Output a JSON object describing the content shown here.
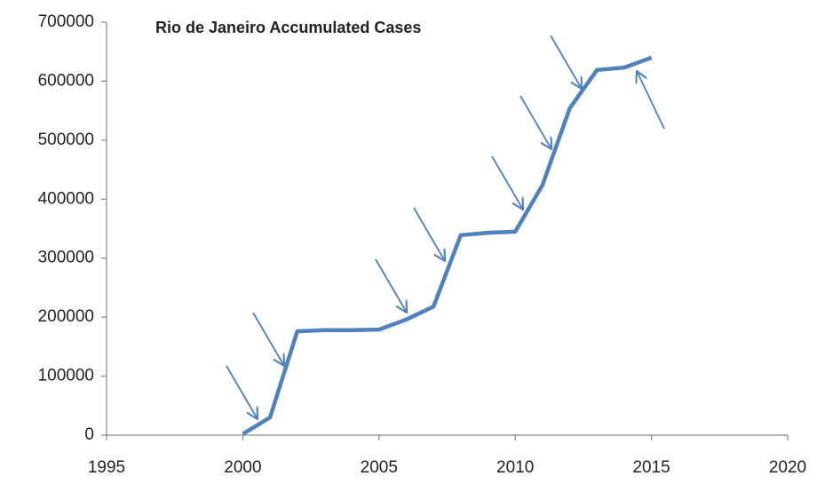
{
  "chart_data": {
    "type": "line",
    "title": "Rio de Janeiro Accumulated Cases",
    "series": [
      {
        "color": "#4f81bd",
        "x": [
          2000,
          2001,
          2002,
          2003,
          2004,
          2005,
          2006,
          2007,
          2008,
          2009,
          2010,
          2011,
          2012,
          2013,
          2014,
          2015
        ],
        "values": [
          2000,
          30000,
          176000,
          178000,
          178000,
          179000,
          196000,
          218000,
          339000,
          343000,
          345000,
          424000,
          554000,
          619000,
          623000,
          640000
        ]
      }
    ],
    "xlim": [
      1995,
      2020
    ],
    "xticks": [
      1995,
      2000,
      2005,
      2010,
      2015,
      2020
    ],
    "ylim": [
      0,
      700000
    ],
    "yticks": [
      0,
      100000,
      200000,
      300000,
      400000,
      500000,
      600000,
      700000
    ],
    "grid": false
  }
}
